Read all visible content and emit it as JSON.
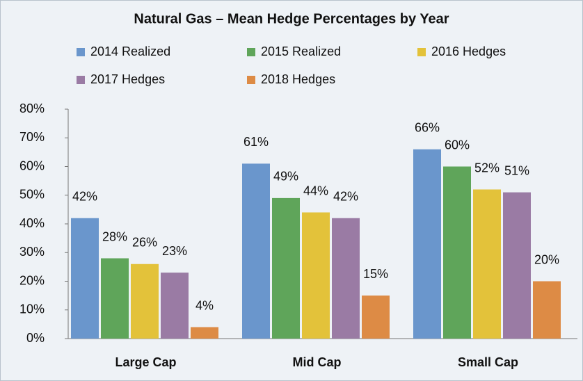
{
  "chart_data": {
    "type": "bar",
    "title": "Natural Gas – Mean Hedge Percentages by Year",
    "categories": [
      "Large Cap",
      "Mid Cap",
      "Small Cap"
    ],
    "series": [
      {
        "name": "2014 Realized",
        "color": "#6a96cc",
        "values": [
          42,
          61,
          66
        ],
        "value_labels": [
          "42%",
          "61%",
          "66%"
        ]
      },
      {
        "name": "2015 Realized",
        "color": "#5fa55a",
        "values": [
          28,
          49,
          60
        ],
        "value_labels": [
          "28%",
          "49%",
          "60%"
        ]
      },
      {
        "name": "2016 Hedges",
        "color": "#e3c23a",
        "values": [
          26,
          44,
          52
        ],
        "value_labels": [
          "26%",
          "44%",
          "52%"
        ]
      },
      {
        "name": "2017 Hedges",
        "color": "#9a7ba4",
        "values": [
          23,
          42,
          51
        ],
        "value_labels": [
          "23%",
          "42%",
          "51%"
        ]
      },
      {
        "name": "2018 Hedges",
        "color": "#dd8b45",
        "values": [
          4,
          15,
          20
        ],
        "value_labels": [
          "4%",
          "15%",
          "20%"
        ]
      }
    ],
    "ylim": [
      0,
      80
    ],
    "yticks": [
      {
        "value": 0,
        "label": "0%"
      },
      {
        "value": 10,
        "label": "10%"
      },
      {
        "value": 20,
        "label": "20%"
      },
      {
        "value": 30,
        "label": "30%"
      },
      {
        "value": 40,
        "label": "40%"
      },
      {
        "value": 50,
        "label": "50%"
      },
      {
        "value": 60,
        "label": "60%"
      },
      {
        "value": 70,
        "label": "70%"
      },
      {
        "value": 80,
        "label": "80%"
      }
    ],
    "grid": false,
    "legend": "top"
  }
}
